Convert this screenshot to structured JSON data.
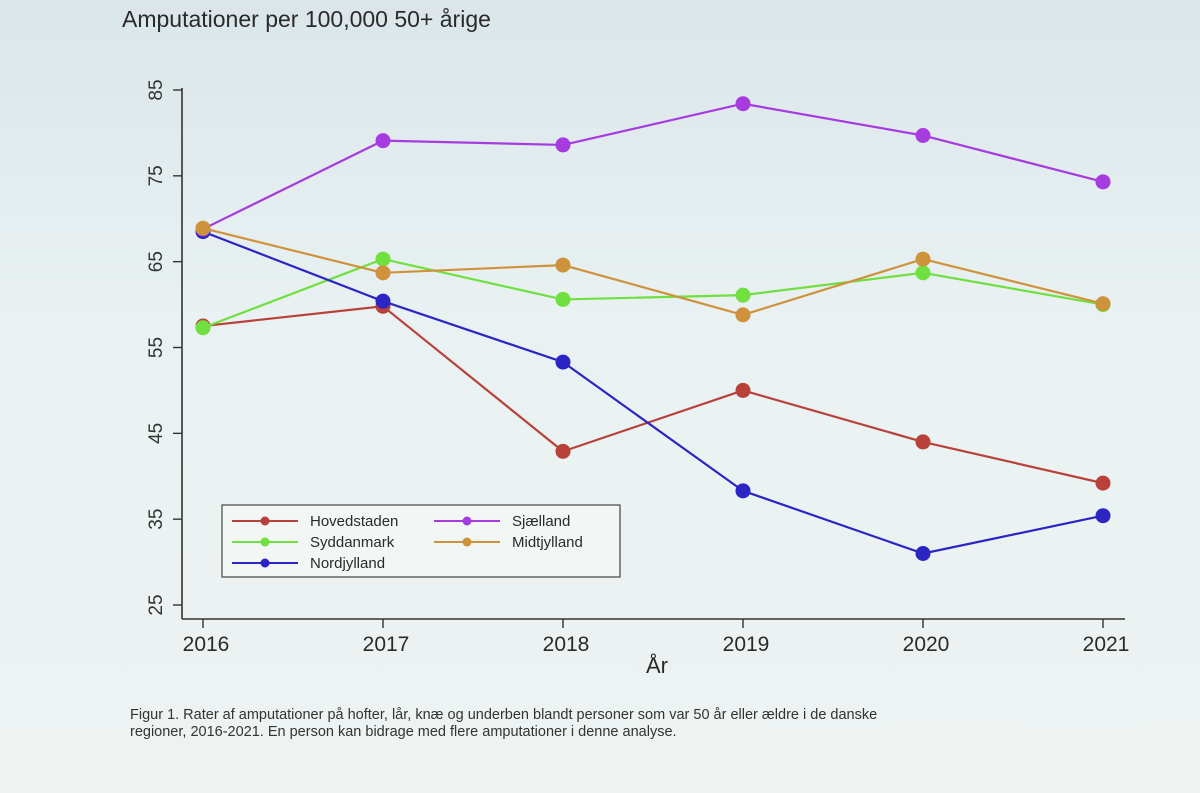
{
  "title": "Amputationer per 100,000 50+ årige",
  "caption": {
    "line1": "Figur 1. Rater af amputationer på hofter, lår, knæ og underben blandt personer som var 50 år eller ældre i de danske",
    "line2": "regioner, 2016-2021. En person kan bidrage med flere amputationer i denne analyse."
  },
  "chart_data": {
    "type": "line",
    "title": "Amputationer per 100,000 50+ årige",
    "xlabel": "År",
    "ylabel": "",
    "x": [
      "2016",
      "2017",
      "2018",
      "2019",
      "2020",
      "2021"
    ],
    "ylim": [
      25,
      85
    ],
    "yticks": [
      "25",
      "35",
      "45",
      "55",
      "65",
      "75",
      "85"
    ],
    "legend_position": "bottom-left",
    "series": [
      {
        "name": "Hovedstaden",
        "color": "#b8413a",
        "values": [
          57.5,
          59.8,
          42.9,
          50.0,
          44.0,
          39.2
        ]
      },
      {
        "name": "Syddanmark",
        "color": "#6fe03f",
        "values": [
          57.3,
          65.3,
          60.6,
          61.1,
          63.7,
          60.0
        ]
      },
      {
        "name": "Nordjylland",
        "color": "#2b25c4",
        "values": [
          68.5,
          60.4,
          53.3,
          38.3,
          31.0,
          35.4
        ]
      },
      {
        "name": "Sjælland",
        "color": "#a63be0",
        "values": [
          68.8,
          79.1,
          78.6,
          83.4,
          79.7,
          74.3
        ]
      },
      {
        "name": "Midtjylland",
        "color": "#cf923c",
        "values": [
          68.9,
          63.7,
          64.6,
          58.8,
          65.3,
          60.1
        ]
      }
    ]
  }
}
